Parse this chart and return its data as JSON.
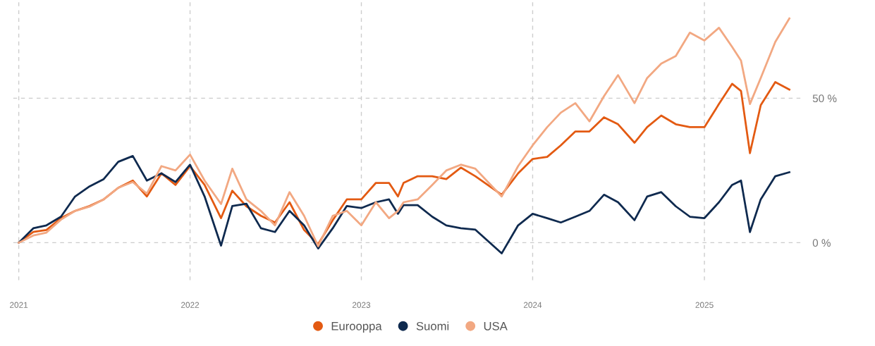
{
  "chart_data": {
    "type": "line",
    "x": [
      "2021-01-01",
      "2021-02-01",
      "2021-03-01",
      "2021-04-01",
      "2021-05-01",
      "2021-06-01",
      "2021-07-01",
      "2021-08-01",
      "2021-09-01",
      "2021-10-01",
      "2021-11-01",
      "2021-12-01",
      "2022-01-01",
      "2022-02-01",
      "2022-03-08",
      "2022-04-01",
      "2022-05-01",
      "2022-06-01",
      "2022-07-01",
      "2022-08-01",
      "2022-09-01",
      "2022-10-01",
      "2022-11-01",
      "2022-12-01",
      "2023-01-01",
      "2023-02-01",
      "2023-03-01",
      "2023-03-20",
      "2023-04-01",
      "2023-05-01",
      "2023-06-01",
      "2023-07-01",
      "2023-08-01",
      "2023-09-01",
      "2023-10-27",
      "2023-12-01",
      "2024-01-01",
      "2024-02-01",
      "2024-03-01",
      "2024-04-01",
      "2024-05-01",
      "2024-06-01",
      "2024-07-01",
      "2024-08-05",
      "2024-09-01",
      "2024-10-01",
      "2024-11-01",
      "2024-12-01",
      "2025-01-01",
      "2025-02-01",
      "2025-03-01",
      "2025-03-20",
      "2025-04-08",
      "2025-05-01",
      "2025-06-01",
      "2025-07-01"
    ],
    "series": [
      {
        "name": "Eurooppa",
        "color": "#e35a12",
        "values": [
          0,
          3.7,
          4.4,
          8.5,
          11,
          12.7,
          15,
          19,
          21.5,
          16,
          24,
          20,
          26.5,
          20,
          8.5,
          18,
          12.6,
          9.3,
          7,
          14,
          4.4,
          -0.5,
          7.8,
          15,
          15,
          20.7,
          20.7,
          16,
          20.7,
          23,
          23,
          22,
          26,
          23,
          16.6,
          24,
          29,
          29.7,
          33.7,
          38.5,
          38.5,
          43.4,
          41,
          34.6,
          40,
          44,
          41,
          40,
          40,
          48,
          55,
          52.5,
          31,
          47.6,
          55.6,
          53
        ]
      },
      {
        "name": "Suomi",
        "color": "#0f2a4f",
        "values": [
          0,
          5,
          6,
          9,
          16,
          19.5,
          22,
          28,
          30,
          21.5,
          24,
          21,
          27,
          16,
          -1,
          12.7,
          13.5,
          5,
          3.7,
          11,
          6,
          -2,
          5,
          12.7,
          12,
          14,
          15,
          10,
          13,
          13,
          9,
          6,
          5,
          4.5,
          -3.7,
          6,
          10,
          8.5,
          7,
          9,
          11,
          16.6,
          14,
          7.8,
          16,
          17.5,
          12.6,
          9,
          8.5,
          14,
          20,
          21.5,
          3.7,
          15,
          23,
          24.4
        ]
      },
      {
        "name": "USA",
        "color": "#f2a882",
        "values": [
          0,
          2.5,
          3.5,
          8,
          11,
          12.5,
          15,
          19,
          21,
          17,
          26.5,
          25,
          30.5,
          21.5,
          13.4,
          25.6,
          15,
          11,
          6,
          17.5,
          9.3,
          -1.2,
          9.3,
          11,
          6,
          14,
          8.5,
          11,
          14,
          15,
          20,
          25,
          27,
          25.6,
          16,
          26.5,
          33.7,
          40,
          45,
          48.3,
          42,
          50.7,
          58,
          48.3,
          57,
          62,
          64.6,
          72.7,
          70,
          74.4,
          67.8,
          63,
          48,
          57,
          69.5,
          77.6
        ]
      }
    ],
    "xlim": [
      "2020-12-20",
      "2025-07-25"
    ],
    "xticks": [
      {
        "value": "2021-01-01",
        "label": "2021"
      },
      {
        "value": "2022-01-01",
        "label": "2022"
      },
      {
        "value": "2023-01-01",
        "label": "2023"
      },
      {
        "value": "2024-01-01",
        "label": "2024"
      },
      {
        "value": "2025-01-01",
        "label": "2025"
      }
    ],
    "ylim": [
      -13,
      84
    ],
    "yticks": [
      {
        "value": 0,
        "label": "0 %"
      },
      {
        "value": 50,
        "label": "50 %"
      }
    ],
    "grid": true,
    "legend": "bottom",
    "line_style": "solid"
  }
}
